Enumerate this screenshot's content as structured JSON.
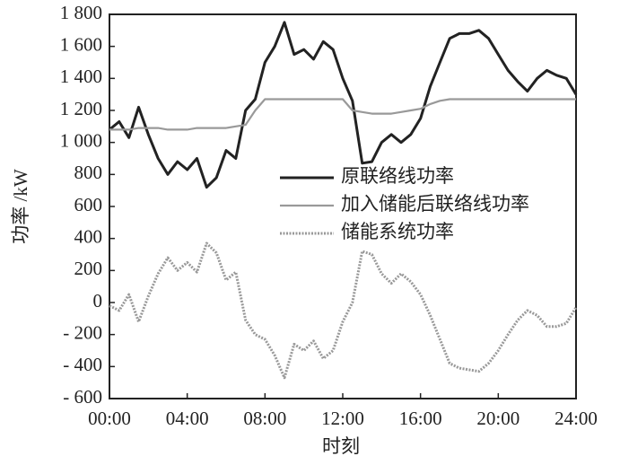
{
  "chart_data": {
    "type": "line",
    "xlabel": "时刻",
    "ylabel": "功率 /kW",
    "x": [
      0,
      0.5,
      1,
      1.5,
      2,
      2.5,
      3,
      3.5,
      4,
      4.5,
      5,
      5.5,
      6,
      6.5,
      7,
      7.5,
      8,
      8.5,
      9,
      9.5,
      10,
      10.5,
      11,
      11.5,
      12,
      12.5,
      13,
      13.5,
      14,
      14.5,
      15,
      15.5,
      16,
      16.5,
      17,
      17.5,
      18,
      18.5,
      19,
      19.5,
      20,
      20.5,
      21,
      21.5,
      22,
      22.5,
      23,
      23.5,
      24
    ],
    "xlim": [
      0,
      24
    ],
    "xticks": [
      {
        "value": 0,
        "label": "00:00"
      },
      {
        "value": 4,
        "label": "04:00"
      },
      {
        "value": 8,
        "label": "08:00"
      },
      {
        "value": 12,
        "label": "12:00"
      },
      {
        "value": 16,
        "label": "16:00"
      },
      {
        "value": 20,
        "label": "20:00"
      },
      {
        "value": 24,
        "label": "24:00"
      }
    ],
    "ylim": [
      -600,
      1800
    ],
    "yticks": [
      {
        "value": -600,
        "label": "- 600"
      },
      {
        "value": -400,
        "label": "- 400"
      },
      {
        "value": -200,
        "label": "- 200"
      },
      0,
      200,
      400,
      600,
      800,
      {
        "value": 1000,
        "label": "1 000"
      },
      {
        "value": 1200,
        "label": "1 200"
      },
      {
        "value": 1400,
        "label": "1 400"
      },
      {
        "value": 1600,
        "label": "1 600"
      },
      {
        "value": 1800,
        "label": "1 800"
      }
    ],
    "legend": "center right",
    "series": [
      {
        "name": "原联络线功率",
        "color": "#222222",
        "style": "solid",
        "values": [
          1080,
          1130,
          1030,
          1220,
          1050,
          900,
          800,
          880,
          830,
          900,
          720,
          780,
          950,
          900,
          1200,
          1270,
          1500,
          1600,
          1750,
          1550,
          1580,
          1520,
          1630,
          1580,
          1400,
          1260,
          870,
          880,
          1000,
          1050,
          1000,
          1050,
          1150,
          1350,
          1500,
          1650,
          1680,
          1680,
          1700,
          1650,
          1550,
          1450,
          1380,
          1320,
          1400,
          1450,
          1420,
          1400,
          1300
        ]
      },
      {
        "name": "加入储能后联络线功率",
        "color": "#999999",
        "style": "solid",
        "values": [
          1080,
          1080,
          1080,
          1090,
          1090,
          1090,
          1080,
          1080,
          1080,
          1090,
          1090,
          1090,
          1090,
          1100,
          1110,
          1200,
          1270,
          1270,
          1270,
          1270,
          1270,
          1270,
          1270,
          1270,
          1270,
          1200,
          1190,
          1180,
          1180,
          1180,
          1190,
          1200,
          1210,
          1240,
          1260,
          1270,
          1270,
          1270,
          1270,
          1270,
          1270,
          1270,
          1270,
          1270,
          1270,
          1270,
          1270,
          1270,
          1270
        ]
      },
      {
        "name": "储能系统功率",
        "color": "#999999",
        "style": "dotted",
        "values": [
          -20,
          -50,
          50,
          -120,
          40,
          180,
          280,
          200,
          250,
          190,
          370,
          310,
          140,
          190,
          -110,
          -200,
          -230,
          -330,
          -470,
          -260,
          -300,
          -240,
          -350,
          -300,
          -120,
          0,
          320,
          300,
          180,
          120,
          180,
          130,
          50,
          -80,
          -230,
          -380,
          -410,
          -420,
          -430,
          -380,
          -300,
          -200,
          -110,
          -50,
          -80,
          -150,
          -150,
          -130,
          -30
        ]
      }
    ]
  }
}
